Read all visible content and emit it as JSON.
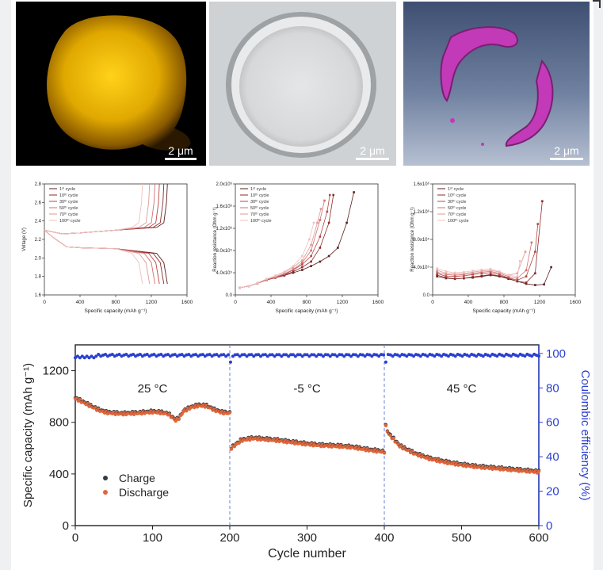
{
  "images": [
    {
      "name": "fluorescence-particle",
      "scale": "2 μm"
    },
    {
      "name": "sem-particle",
      "scale": "2 μm"
    },
    {
      "name": "tomography-reconstruction",
      "scale": "2 μm"
    }
  ],
  "chart_data": [
    {
      "type": "line",
      "panel": "voltage-profiles",
      "xlabel": "Specific capacity (mAh g⁻¹)",
      "ylabel": "Voltage (V)",
      "xlim": [
        0,
        1600
      ],
      "ylim": [
        1.6,
        2.8
      ],
      "xticks": [
        "0",
        "400",
        "800",
        "1200",
        "1600"
      ],
      "yticks": [
        "1.6",
        "1.8",
        "2.0",
        "2.2",
        "2.4",
        "2.6",
        "2.8"
      ],
      "legend": [
        "1ˢᵗ cycle",
        "10ᵗʰ cycle",
        "30ᵗʰ cycle",
        "50ᵗʰ cycle",
        "70ᵗʰ cycle",
        "100ᵗʰ cycle"
      ],
      "series": [
        {
          "name": "1ˢᵗ cycle",
          "end": 1380
        },
        {
          "name": "10ᵗʰ cycle",
          "end": 1340
        },
        {
          "name": "30ᵗʰ cycle",
          "end": 1290
        },
        {
          "name": "50ᵗʰ cycle",
          "end": 1240
        },
        {
          "name": "70ᵗʰ cycle",
          "end": 1180
        },
        {
          "name": "100ᵗʰ cycle",
          "end": 1100
        }
      ]
    },
    {
      "type": "line",
      "panel": "reaction-resistance-discharge",
      "xlabel": "Specific capacity (mAh g⁻¹)",
      "ylabel": "Reaction resistance (Ohm g⁻¹)",
      "xlim": [
        0,
        1600
      ],
      "ylim": [
        0,
        2.0
      ],
      "xticks": [
        "0",
        "400",
        "800",
        "1200",
        "1600"
      ],
      "yticks": [
        "0.0",
        "4.0x10⁵",
        "8.0x10⁵",
        "1.2x10⁶",
        "1.6x10⁶",
        "2.0x10⁶"
      ],
      "legend": [
        "1ˢᵗ cycle",
        "10ᵗʰ cycle",
        "30ᵗʰ cycle",
        "50ᵗʰ cycle",
        "70ᵗʰ cycle",
        "100ᵗʰ cycle"
      ],
      "series": [
        {
          "name": "1ˢᵗ cycle",
          "x": [
            50,
            150,
            250,
            350,
            450,
            550,
            650,
            750,
            850,
            950,
            1050,
            1150,
            1250,
            1330
          ],
          "y": [
            0.13,
            0.16,
            0.21,
            0.27,
            0.31,
            0.35,
            0.4,
            0.45,
            0.52,
            0.6,
            0.7,
            0.85,
            1.3,
            1.85
          ]
        },
        {
          "name": "10ᵗʰ cycle",
          "x": [
            50,
            150,
            250,
            350,
            450,
            550,
            650,
            750,
            850,
            950,
            1050,
            1100
          ],
          "y": [
            0.13,
            0.16,
            0.21,
            0.27,
            0.31,
            0.36,
            0.42,
            0.5,
            0.6,
            0.85,
            1.3,
            1.8
          ]
        },
        {
          "name": "30ᵗʰ cycle",
          "x": [
            50,
            150,
            250,
            350,
            450,
            550,
            650,
            750,
            850,
            950,
            1030,
            1060
          ],
          "y": [
            0.13,
            0.16,
            0.21,
            0.27,
            0.31,
            0.37,
            0.45,
            0.55,
            0.7,
            1.05,
            1.5,
            1.8
          ]
        },
        {
          "name": "50ᵗʰ cycle",
          "x": [
            50,
            150,
            250,
            350,
            450,
            550,
            650,
            750,
            850,
            950,
            1000
          ],
          "y": [
            0.13,
            0.16,
            0.21,
            0.28,
            0.32,
            0.38,
            0.46,
            0.58,
            0.8,
            1.35,
            1.7
          ]
        },
        {
          "name": "70ᵗʰ cycle",
          "x": [
            50,
            150,
            250,
            350,
            450,
            550,
            650,
            750,
            850,
            920,
            960
          ],
          "y": [
            0.13,
            0.16,
            0.21,
            0.28,
            0.33,
            0.4,
            0.5,
            0.62,
            0.9,
            1.3,
            1.55
          ]
        },
        {
          "name": "100ᵗʰ cycle",
          "x": [
            50,
            150,
            250,
            350,
            450,
            550,
            650,
            750,
            830,
            880
          ],
          "y": [
            0.13,
            0.16,
            0.22,
            0.29,
            0.35,
            0.42,
            0.52,
            0.7,
            1.0,
            1.3
          ]
        }
      ]
    },
    {
      "type": "line",
      "panel": "reaction-resistance-charge",
      "xlabel": "Specific capacity (mAh g⁻¹)",
      "ylabel": "Reaction resistance (Ohm g⁻¹)",
      "xlim": [
        0,
        1600
      ],
      "ylim": [
        0,
        1.8
      ],
      "xticks": [
        "0",
        "400",
        "800",
        "1200",
        "1600"
      ],
      "yticks": [
        "0.0",
        "4.0x10⁵",
        "8.0x10⁵",
        "1.2x10⁶",
        "1.6x10⁶"
      ],
      "legend": [
        "1ˢᵗ cycle",
        "10ᵗʰ cycle",
        "30ᵗʰ cycle",
        "50ᵗʰ cycle",
        "70ᵗʰ cycle",
        "100ᵗʰ cycle"
      ],
      "series": [
        {
          "name": "1ˢᵗ cycle",
          "x": [
            50,
            150,
            250,
            350,
            450,
            550,
            650,
            750,
            850,
            950,
            1050,
            1150,
            1250,
            1330
          ],
          "y": [
            0.3,
            0.27,
            0.26,
            0.27,
            0.28,
            0.3,
            0.32,
            0.3,
            0.26,
            0.22,
            0.18,
            0.16,
            0.17,
            0.45
          ]
        },
        {
          "name": "10ᵗʰ cycle",
          "x": [
            50,
            150,
            250,
            350,
            450,
            550,
            650,
            750,
            850,
            950,
            1050,
            1150,
            1230
          ],
          "y": [
            0.32,
            0.28,
            0.26,
            0.27,
            0.29,
            0.31,
            0.33,
            0.31,
            0.27,
            0.22,
            0.2,
            0.35,
            1.52
          ]
        },
        {
          "name": "30ᵗʰ cycle",
          "x": [
            50,
            150,
            250,
            350,
            450,
            550,
            650,
            750,
            850,
            950,
            1050,
            1150,
            1180
          ],
          "y": [
            0.35,
            0.3,
            0.3,
            0.31,
            0.33,
            0.35,
            0.36,
            0.33,
            0.28,
            0.24,
            0.3,
            0.7,
            1.15
          ]
        },
        {
          "name": "50ᵗʰ cycle",
          "x": [
            50,
            150,
            250,
            350,
            450,
            550,
            650,
            750,
            850,
            950,
            1050,
            1110
          ],
          "y": [
            0.37,
            0.33,
            0.32,
            0.33,
            0.35,
            0.37,
            0.38,
            0.35,
            0.3,
            0.27,
            0.4,
            0.85
          ]
        },
        {
          "name": "70ᵗʰ cycle",
          "x": [
            50,
            150,
            250,
            350,
            450,
            550,
            650,
            750,
            850,
            950,
            1040
          ],
          "y": [
            0.4,
            0.35,
            0.34,
            0.35,
            0.37,
            0.39,
            0.4,
            0.37,
            0.32,
            0.35,
            0.7
          ]
        },
        {
          "name": "100ᵗʰ cycle",
          "x": [
            50,
            150,
            250,
            350,
            450,
            550,
            650,
            750,
            850,
            950,
            980
          ],
          "y": [
            0.43,
            0.38,
            0.36,
            0.37,
            0.39,
            0.41,
            0.42,
            0.38,
            0.32,
            0.3,
            0.55
          ]
        }
      ]
    },
    {
      "type": "scatter",
      "panel": "cycling-performance",
      "xlabel": "Cycle number",
      "ylabel": "Specific capacity (mAh g⁻¹)",
      "y2label": "Coulombic efficiency (%)",
      "xlim": [
        0,
        600
      ],
      "ylim": [
        0,
        1400
      ],
      "y2lim": [
        0,
        105
      ],
      "xticks": [
        "0",
        "100",
        "200",
        "300",
        "400",
        "500",
        "600"
      ],
      "yticks": [
        "0",
        "400",
        "800",
        "1200"
      ],
      "y2ticks": [
        "0",
        "20",
        "40",
        "60",
        "80",
        "100"
      ],
      "annotations": [
        "25 °C",
        "-5 °C",
        "45 °C"
      ],
      "legend": [
        "Charge",
        "Discharge"
      ],
      "colors": {
        "charge": "#2f3b45",
        "discharge": "#e0663a",
        "efficiency": "#2a3fd0",
        "axis2": "#2a3fd0"
      },
      "dividers": [
        200,
        400
      ],
      "series": [
        {
          "name": "Charge",
          "x": [
            0,
            10,
            20,
            30,
            40,
            60,
            80,
            100,
            110,
            120,
            130,
            135,
            140,
            150,
            160,
            170,
            180,
            190,
            200,
            201,
            215,
            230,
            260,
            300,
            320,
            340,
            360,
            380,
            400,
            401,
            405,
            420,
            440,
            460,
            480,
            500,
            520,
            540,
            560,
            580,
            600
          ],
          "y": [
            990,
            960,
            930,
            900,
            880,
            870,
            875,
            885,
            880,
            870,
            820,
            840,
            890,
            920,
            935,
            930,
            900,
            880,
            875,
            600,
            665,
            680,
            665,
            635,
            625,
            620,
            610,
            590,
            575,
            790,
            720,
            620,
            560,
            520,
            495,
            475,
            460,
            450,
            440,
            430,
            420
          ]
        },
        {
          "name": "Discharge",
          "x": [
            0,
            10,
            20,
            30,
            40,
            60,
            80,
            100,
            110,
            120,
            130,
            135,
            140,
            150,
            160,
            170,
            180,
            190,
            200,
            201,
            215,
            230,
            260,
            300,
            320,
            340,
            360,
            380,
            400,
            401,
            405,
            420,
            440,
            460,
            480,
            500,
            520,
            540,
            560,
            580,
            600
          ],
          "y": [
            985,
            955,
            925,
            895,
            875,
            865,
            870,
            880,
            875,
            865,
            815,
            835,
            885,
            915,
            930,
            925,
            895,
            875,
            870,
            595,
            660,
            675,
            660,
            630,
            620,
            615,
            605,
            585,
            570,
            785,
            715,
            615,
            555,
            515,
            490,
            470,
            455,
            445,
            435,
            425,
            415
          ]
        },
        {
          "name": "Coulombic efficiency",
          "x": [
            0,
            100,
            200,
            300,
            400,
            500,
            600
          ],
          "y": [
            98,
            99,
            99,
            99,
            99,
            99,
            99
          ]
        }
      ]
    }
  ]
}
